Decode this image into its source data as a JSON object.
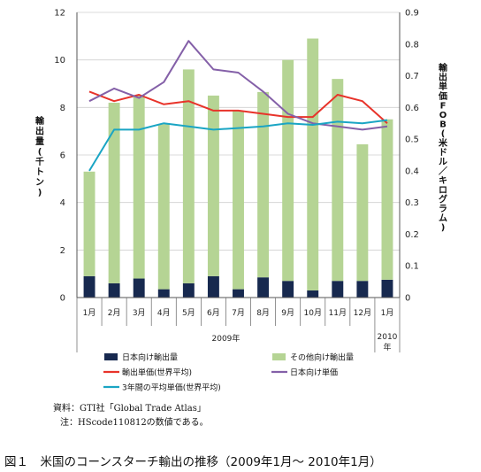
{
  "chart_data": {
    "type": "bar+line",
    "categories": [
      "1月",
      "2月",
      "3月",
      "4月",
      "5月",
      "6月",
      "7月",
      "8月",
      "9月",
      "10月",
      "11月",
      "12月",
      "1月"
    ],
    "year_groups": [
      {
        "label": "2009年",
        "from": 0,
        "to": 11
      },
      {
        "label": "2010年",
        "from": 12,
        "to": 12
      }
    ],
    "left_axis": {
      "label": "輸出量(千トン)",
      "ylim": [
        0,
        12
      ],
      "ticks": [
        0,
        2,
        4,
        6,
        8,
        10,
        12
      ]
    },
    "right_axis": {
      "label": "輸出単価FOB(米ドル／キログラム)",
      "ylim": [
        0,
        0.9
      ],
      "ticks": [
        0,
        0.1,
        0.2,
        0.3,
        0.4,
        0.5,
        0.6,
        0.7,
        0.8,
        0.9
      ]
    },
    "bar_series": [
      {
        "name": "日本向け輸出量",
        "color": "#17294f",
        "axis": "left",
        "values": [
          0.9,
          0.6,
          0.8,
          0.35,
          0.6,
          0.9,
          0.35,
          0.85,
          0.7,
          0.3,
          0.7,
          0.7,
          0.75
        ]
      },
      {
        "name": "その他向け輸出量",
        "color": "#b5d494",
        "axis": "left",
        "values": [
          4.4,
          7.6,
          7.7,
          6.95,
          9.0,
          7.6,
          7.5,
          7.8,
          9.3,
          10.6,
          8.5,
          5.75,
          6.75
        ]
      }
    ],
    "line_series": [
      {
        "name": "輸出単価(世界平均)",
        "color": "#e8332a",
        "axis": "right",
        "values": [
          0.65,
          0.62,
          0.64,
          0.61,
          0.62,
          0.59,
          0.59,
          0.58,
          0.57,
          0.57,
          0.64,
          0.62,
          0.55
        ]
      },
      {
        "name": "日本向け単価",
        "color": "#8460a8",
        "axis": "right",
        "values": [
          0.62,
          0.66,
          0.63,
          0.68,
          0.81,
          0.72,
          0.71,
          0.65,
          0.58,
          0.55,
          0.54,
          0.53,
          0.54
        ]
      },
      {
        "name": "3年間の平均単価(世界平均)",
        "color": "#1aa5c4",
        "axis": "right",
        "values": [
          0.4,
          0.53,
          0.53,
          0.55,
          0.54,
          0.53,
          0.535,
          0.54,
          0.55,
          0.545,
          0.555,
          0.55,
          0.56
        ]
      }
    ],
    "legend": [
      {
        "name": "日本向け輸出量",
        "kind": "box",
        "color": "#17294f"
      },
      {
        "name": "その他向け輸出量",
        "kind": "box",
        "color": "#b5d494"
      },
      {
        "name": "輸出単価(世界平均)",
        "kind": "line",
        "color": "#e8332a"
      },
      {
        "name": "日本向け単価",
        "kind": "line",
        "color": "#8460a8"
      },
      {
        "name": "3年間の平均単価(世界平均)",
        "kind": "line",
        "color": "#1aa5c4"
      }
    ]
  },
  "notes": {
    "source": "資料：GTI社「Global Trade Atlas」",
    "note": "注：HScode110812の数値である。"
  },
  "caption": "図１　米国のコーンスターチ輸出の推移（2009年1月～ 2010年1月）"
}
